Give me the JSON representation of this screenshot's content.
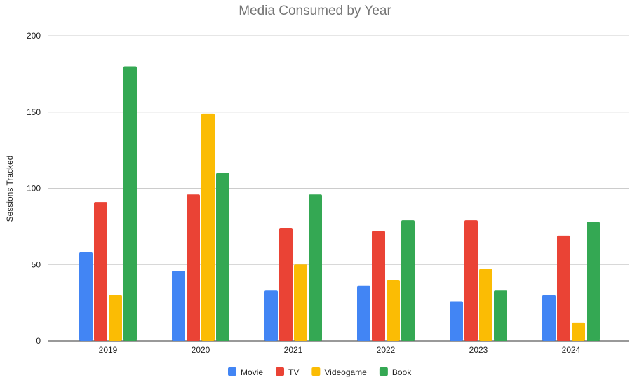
{
  "chart_data": {
    "type": "bar",
    "title": "Media Consumed by Year",
    "xlabel": "",
    "ylabel": "Sessions Tracked",
    "ylim": [
      0,
      200
    ],
    "yticks": [
      "0",
      "50",
      "100",
      "150",
      "200"
    ],
    "grid": true,
    "legend_position": "bottom",
    "categories": [
      "2019",
      "2020",
      "2021",
      "2022",
      "2023",
      "2024"
    ],
    "series": [
      {
        "name": "Movie",
        "color": "#4285f4",
        "values": [
          58,
          46,
          33,
          36,
          26,
          30
        ]
      },
      {
        "name": "TV",
        "color": "#ea4335",
        "values": [
          91,
          96,
          74,
          72,
          79,
          69
        ]
      },
      {
        "name": "Videogame",
        "color": "#fbbc04",
        "values": [
          30,
          149,
          50,
          40,
          47,
          12
        ]
      },
      {
        "name": "Book",
        "color": "#34a853",
        "values": [
          180,
          110,
          96,
          79,
          33,
          78
        ]
      }
    ]
  }
}
